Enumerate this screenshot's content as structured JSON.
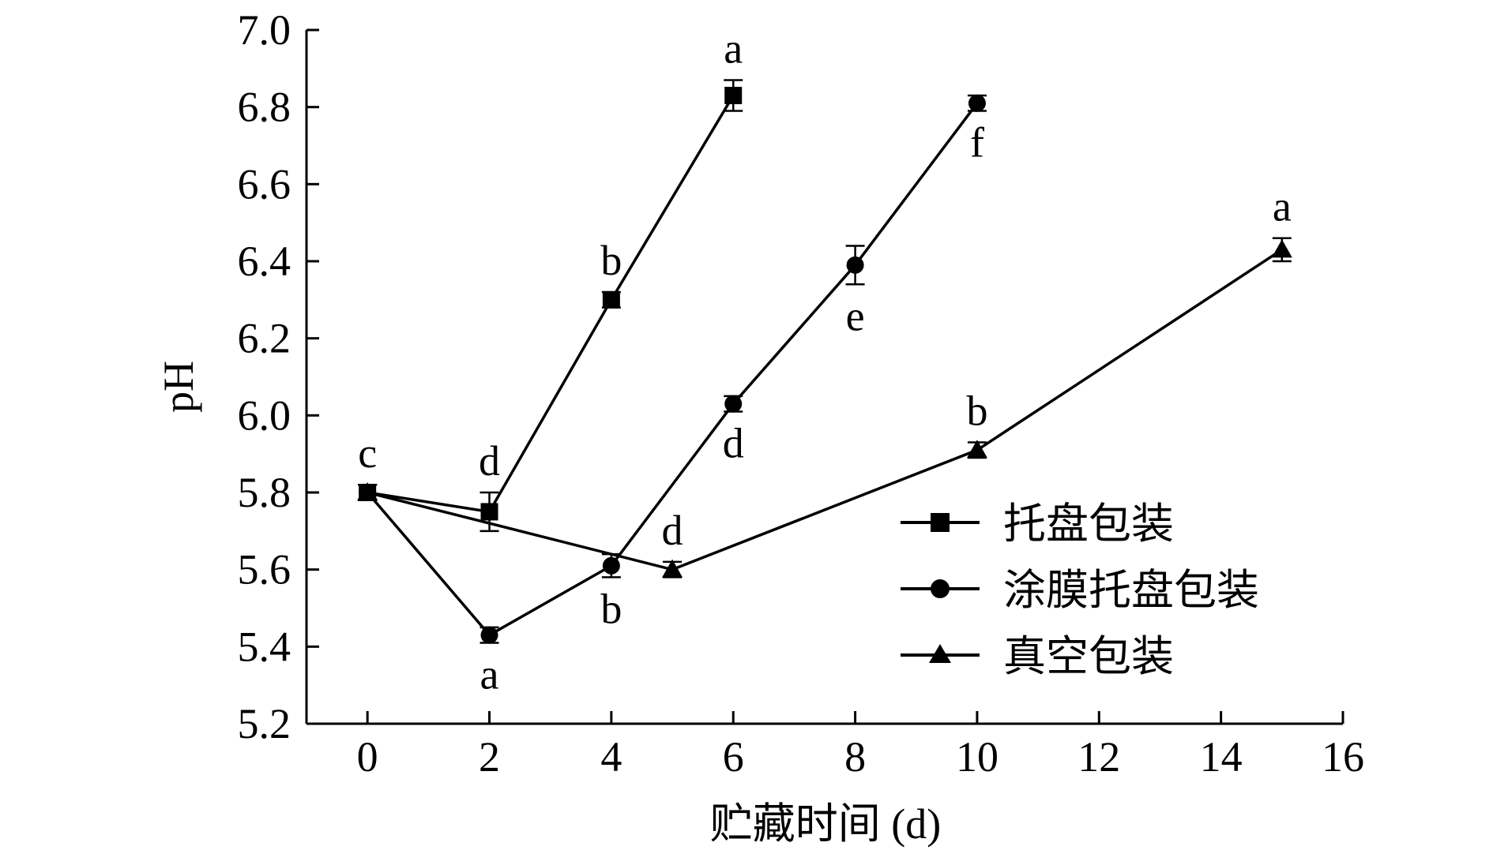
{
  "chart_data": {
    "type": "line",
    "title": "",
    "xlabel": "贮藏时间 (d)",
    "ylabel": "pH",
    "xlim": [
      -1,
      16
    ],
    "ylim": [
      5.2,
      7.0
    ],
    "xticks": [
      0,
      2,
      4,
      6,
      8,
      10,
      12,
      14,
      16
    ],
    "yticks": [
      "5.2",
      "5.4",
      "5.6",
      "5.8",
      "6.0",
      "6.2",
      "6.4",
      "6.6",
      "6.8",
      "7.0"
    ],
    "grid": false,
    "legend_position": "bottom-right",
    "series": [
      {
        "name": "托盘包装",
        "marker": "square",
        "x": [
          0,
          2,
          4,
          6
        ],
        "y": [
          5.8,
          5.75,
          6.3,
          6.83
        ],
        "error": [
          0.02,
          0.05,
          0.02,
          0.04
        ],
        "labels": [
          "c",
          "d",
          "b",
          "a"
        ],
        "label_pos": [
          "above",
          "above",
          "above",
          "above"
        ]
      },
      {
        "name": "涂膜托盘包装",
        "marker": "circle",
        "x": [
          0,
          2,
          4,
          6,
          8,
          10
        ],
        "y": [
          5.8,
          5.43,
          5.61,
          6.03,
          6.39,
          6.81
        ],
        "error": [
          0.02,
          0.02,
          0.03,
          0.02,
          0.05,
          0.02
        ],
        "labels": [
          "",
          "a",
          "b",
          "d",
          "e",
          "f"
        ],
        "label_pos": [
          "below",
          "below",
          "below",
          "below",
          "below",
          "below"
        ]
      },
      {
        "name": "真空包装",
        "marker": "triangle",
        "x": [
          0,
          5,
          10,
          15
        ],
        "y": [
          5.8,
          5.6,
          5.91,
          6.43
        ],
        "error": [
          0.02,
          0.02,
          0.02,
          0.03
        ],
        "labels": [
          "",
          "d",
          "b",
          "a"
        ],
        "label_pos": [
          "above",
          "above",
          "above",
          "above"
        ]
      }
    ]
  }
}
